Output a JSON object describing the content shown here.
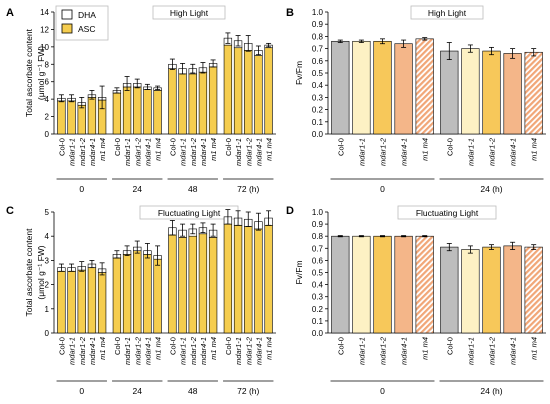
{
  "figure": {
    "genotypes": [
      "Col-0",
      "mdar1-1",
      "mdar1-2",
      "mdar4-1",
      "m1 m4"
    ],
    "colors": {
      "dha_fill": "#ffffff",
      "asc_fill": "#f5cd4f",
      "col0": "#bdbdbd",
      "mdar1_1": "#fdf1c4",
      "mdar1_2": "#f7c85a",
      "mdar4_1": "#f4b689",
      "m1m4_stripe": "#f1a677",
      "legend_box": "#bcbcbc",
      "axis": "#000000"
    }
  },
  "chart_data": [
    {
      "panel": "A",
      "type": "bar",
      "stacked": true,
      "title": "High Light",
      "ylabel_line1": "Total ascorbate content",
      "ylabel_line2": "(μmol g⁻¹ FW)",
      "ylim": [
        0,
        14
      ],
      "yticks": [
        0,
        2,
        4,
        6,
        8,
        10,
        12,
        14
      ],
      "groups": [
        "0",
        "24",
        "48",
        "72 (h)"
      ],
      "legend": [
        "DHA",
        "ASC"
      ],
      "series": [
        {
          "name": "ASC",
          "values": [
            [
              3.8,
              3.8,
              3.3,
              4.2,
              3.9
            ],
            [
              4.7,
              5.4,
              5.4,
              5.1,
              5.0
            ],
            [
              7.5,
              6.9,
              6.9,
              7.1,
              7.7
            ],
            [
              10.2,
              9.9,
              9.6,
              9.0,
              9.9
            ]
          ]
        },
        {
          "name": "DHA",
          "values": [
            [
              0.3,
              0.3,
              0.3,
              0.3,
              0.3
            ],
            [
              0.3,
              0.4,
              0.4,
              0.3,
              0.3
            ],
            [
              0.5,
              0.6,
              0.6,
              0.5,
              0.4
            ],
            [
              0.8,
              0.8,
              0.8,
              0.6,
              0.3
            ]
          ]
        }
      ],
      "errors": [
        [
          0.4,
          0.4,
          0.6,
          0.5,
          1.3
        ],
        [
          0.3,
          0.8,
          0.5,
          0.3,
          0.2
        ],
        [
          0.6,
          0.6,
          0.5,
          0.6,
          0.4
        ],
        [
          0.6,
          0.6,
          0.9,
          0.5,
          0.2
        ]
      ]
    },
    {
      "panel": "B",
      "type": "bar",
      "title": "High Light",
      "ylabel": "Fv/Fm",
      "ylim": [
        0,
        1
      ],
      "yticks": [
        "0.0",
        "0.1",
        "0.2",
        "0.3",
        "0.4",
        "0.5",
        "0.6",
        "0.7",
        "0.8",
        "0.9",
        "1.0"
      ],
      "groups": [
        "0",
        "24 (h)"
      ],
      "values": [
        [
          0.76,
          0.76,
          0.76,
          0.74,
          0.78
        ],
        [
          0.68,
          0.7,
          0.68,
          0.66,
          0.67
        ]
      ],
      "errors": [
        [
          0.01,
          0.01,
          0.02,
          0.03,
          0.01
        ],
        [
          0.07,
          0.03,
          0.03,
          0.04,
          0.03
        ]
      ]
    },
    {
      "panel": "C",
      "type": "bar",
      "stacked": true,
      "title": "Fluctuating Light",
      "ylabel_line1": "Total ascorbate content",
      "ylabel_line2": "(μmol g⁻¹ FW)",
      "ylim": [
        0,
        5
      ],
      "yticks": [
        0,
        1,
        2,
        3,
        4,
        5
      ],
      "groups": [
        "0",
        "24",
        "48",
        "72 (h)"
      ],
      "series": [
        {
          "name": "ASC",
          "values": [
            [
              2.55,
              2.55,
              2.6,
              2.7,
              2.5
            ],
            [
              3.1,
              3.25,
              3.4,
              3.25,
              3.05
            ],
            [
              4.05,
              3.95,
              4.0,
              4.1,
              3.95
            ],
            [
              4.5,
              4.45,
              4.4,
              4.3,
              4.45
            ]
          ]
        },
        {
          "name": "DHA",
          "values": [
            [
              0.15,
              0.15,
              0.15,
              0.15,
              0.15
            ],
            [
              0.15,
              0.15,
              0.15,
              0.15,
              0.15
            ],
            [
              0.3,
              0.3,
              0.3,
              0.25,
              0.3
            ],
            [
              0.3,
              0.3,
              0.3,
              0.3,
              0.3
            ]
          ]
        }
      ],
      "errors": [
        [
          0.15,
          0.15,
          0.2,
          0.15,
          0.25
        ],
        [
          0.15,
          0.2,
          0.25,
          0.3,
          0.4
        ],
        [
          0.3,
          0.25,
          0.2,
          0.2,
          0.25
        ],
        [
          0.3,
          0.3,
          0.3,
          0.35,
          0.3
        ]
      ]
    },
    {
      "panel": "D",
      "type": "bar",
      "title": "Fluctuating Light",
      "ylabel": "Fv/Fm",
      "ylim": [
        0,
        1
      ],
      "yticks": [
        "0.0",
        "0.1",
        "0.2",
        "0.3",
        "0.4",
        "0.5",
        "0.6",
        "0.7",
        "0.8",
        "0.9",
        "1.0"
      ],
      "groups": [
        "0",
        "24 (h)"
      ],
      "values": [
        [
          0.8,
          0.8,
          0.8,
          0.8,
          0.8
        ],
        [
          0.71,
          0.69,
          0.71,
          0.72,
          0.71
        ]
      ],
      "errors": [
        [
          0.005,
          0.005,
          0.005,
          0.005,
          0.005
        ],
        [
          0.03,
          0.03,
          0.02,
          0.03,
          0.02
        ]
      ]
    }
  ]
}
